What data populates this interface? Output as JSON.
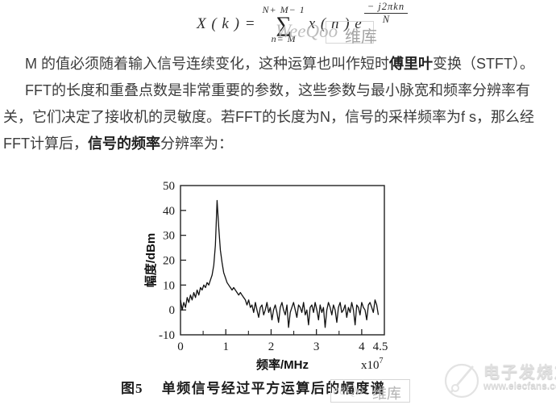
{
  "formula": {
    "lhs": "X ( k ) =",
    "sum_upper": "N+ M− 1",
    "sum_symbol": "∑",
    "sum_lower": "n= M",
    "body": "x ( n ) e",
    "exp_numerator": "− j2πkn",
    "exp_denominator": "N"
  },
  "body_lines": [
    {
      "indent": true,
      "segments": [
        {
          "t": "M 的值必须随着输入信号连续变化，这种运算也叫作短时",
          "b": false
        },
        {
          "t": "傅里叶",
          "b": true
        },
        {
          "t": "变换（STFT）。",
          "b": false
        }
      ]
    },
    {
      "indent": true,
      "segments": [
        {
          "t": "FFT的长度和重叠点数是非常重要的参数，这些参数与最小脉宽和频率分辨率有",
          "b": false
        }
      ]
    },
    {
      "indent": false,
      "segments": [
        {
          "t": "关，它们决定了接收机的灵敏度。若FFT的长度为N，信号的采样频率为f s，那么经",
          "b": false
        }
      ]
    },
    {
      "indent": false,
      "segments": [
        {
          "t": "FFT计算后，",
          "b": false
        },
        {
          "t": "信号的频率",
          "b": true
        },
        {
          "t": "分辨率为：",
          "b": false
        }
      ]
    }
  ],
  "chart_data": {
    "type": "line",
    "title": "单频信号经过平方运算后的幅度谱",
    "xlabel": "频率/MHz",
    "ylabel": "幅度/dBm",
    "x_scale_label": "x10",
    "x_scale_exponent": "7",
    "xlim": [
      0,
      4.5
    ],
    "ylim": [
      -10,
      50
    ],
    "x_ticks": [
      0,
      1,
      2,
      3,
      4
    ],
    "x_minor_ticks": [
      0.5,
      1.5,
      2.5,
      3.5
    ],
    "x_end_tick_label": "4.5",
    "y_ticks": [
      50,
      40,
      30,
      20,
      10,
      0,
      -10
    ],
    "grid": false,
    "legend": false,
    "line_color": "#111111",
    "peak": {
      "x_e7_mhz": 0.81,
      "y_dbm": 44
    },
    "noise_floor_dbm": 0,
    "x_start": 0,
    "x_step": 0.0367,
    "y_values": [
      4,
      0,
      3,
      1,
      5,
      3,
      6,
      4,
      7,
      5,
      8,
      6,
      9,
      8,
      10,
      9,
      11,
      10,
      12,
      14,
      18,
      26,
      44,
      33,
      24,
      19,
      15,
      13,
      11,
      10,
      9,
      8,
      9,
      8,
      7,
      6,
      7,
      6,
      5,
      4,
      2,
      4,
      1,
      2,
      -1,
      3,
      0,
      -3,
      1,
      2,
      -2,
      0,
      3,
      -1,
      1,
      -4,
      0,
      2,
      -1,
      -5,
      1,
      3,
      0,
      -2,
      2,
      -7,
      -1,
      1,
      3,
      0,
      -3,
      2,
      1,
      -1,
      3,
      -2,
      0,
      -6,
      1,
      2,
      -1,
      3,
      0,
      -4,
      2,
      -1,
      1,
      -7,
      0,
      3,
      1,
      -2,
      2,
      0,
      -5,
      1,
      3,
      -1,
      0,
      2,
      -3,
      1,
      -1,
      3,
      0,
      -6,
      2,
      1,
      -2,
      3,
      1,
      0,
      -4,
      2,
      3,
      1,
      -1,
      4,
      2,
      -2
    ]
  },
  "caption": {
    "label": "图5",
    "text": "单频信号经过平方运算后的幅度谱"
  },
  "watermarks": {
    "formula_script": "WeeQoo",
    "formula_cjk": "维库",
    "caption_script": "eeQo",
    "caption_cjk": "维库",
    "brand_name": "电子发烧友",
    "brand_url": "www.elecfans.com"
  }
}
